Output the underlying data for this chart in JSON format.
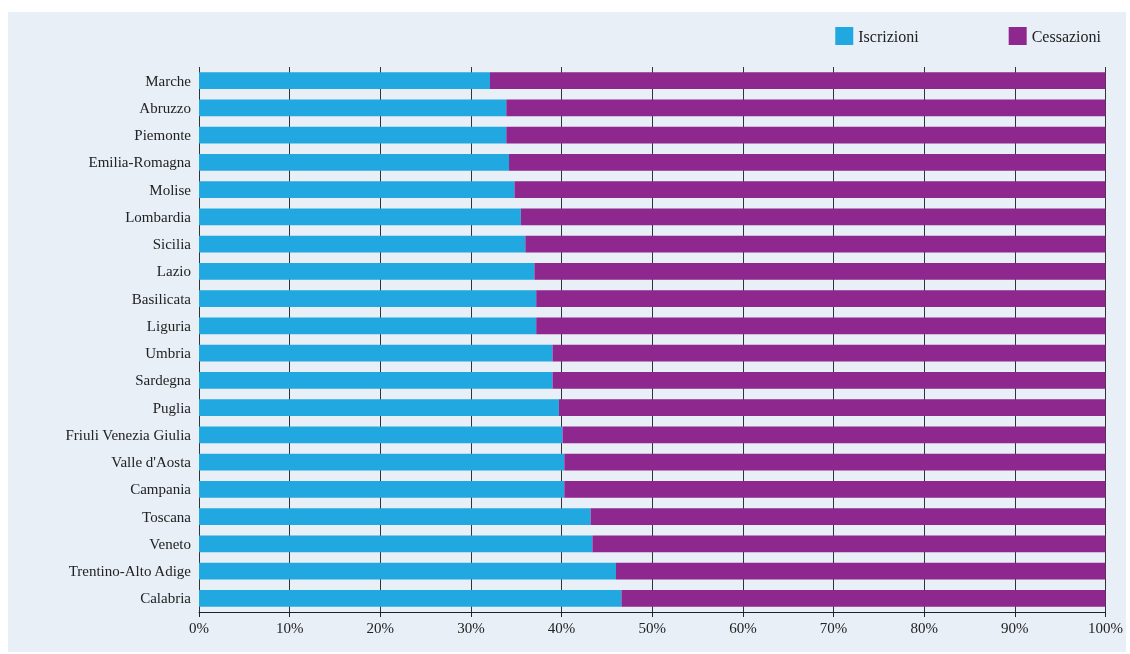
{
  "chart_data": {
    "type": "bar",
    "orientation": "horizontal",
    "stacked": true,
    "categories": [
      "Marche",
      "Abruzzo",
      "Piemonte",
      "Emilia-Romagna",
      "Molise",
      "Lombardia",
      "Sicilia",
      "Lazio",
      "Basilicata",
      "Liguria",
      "Umbria",
      "Sardegna",
      "Puglia",
      "Friuli Venezia Giulia",
      "Valle d'Aosta",
      "Campania",
      "Toscana",
      "Veneto",
      "Trentino-Alto Adige",
      "Calabria"
    ],
    "series": [
      {
        "name": "Iscrizioni",
        "color": "#22a8e0",
        "values": [
          32.1,
          33.9,
          33.9,
          34.2,
          34.8,
          35.5,
          36.0,
          37.0,
          37.2,
          37.2,
          39.0,
          39.0,
          39.7,
          40.1,
          40.3,
          40.3,
          43.2,
          43.4,
          46.0,
          46.6
        ]
      },
      {
        "name": "Cessazioni",
        "color": "#8e278e",
        "values": [
          67.9,
          66.1,
          66.1,
          65.8,
          65.2,
          64.5,
          64.0,
          63.0,
          62.8,
          62.8,
          61.0,
          61.0,
          60.3,
          59.9,
          59.7,
          59.7,
          56.8,
          56.6,
          54.0,
          53.4
        ]
      }
    ],
    "xlim": [
      0,
      100
    ],
    "xticks": [
      {
        "value": 0,
        "label": "0%"
      },
      {
        "value": 10,
        "label": "10%"
      },
      {
        "value": 20,
        "label": "20%"
      },
      {
        "value": 30,
        "label": "30%"
      },
      {
        "value": 40,
        "label": "40%"
      },
      {
        "value": 50,
        "label": "50%"
      },
      {
        "value": 60,
        "label": "60%"
      },
      {
        "value": 70,
        "label": "70%"
      },
      {
        "value": 80,
        "label": "80%"
      },
      {
        "value": 90,
        "label": "90%"
      },
      {
        "value": 100,
        "label": "100%"
      }
    ],
    "grid": "x",
    "legend": "top right"
  }
}
